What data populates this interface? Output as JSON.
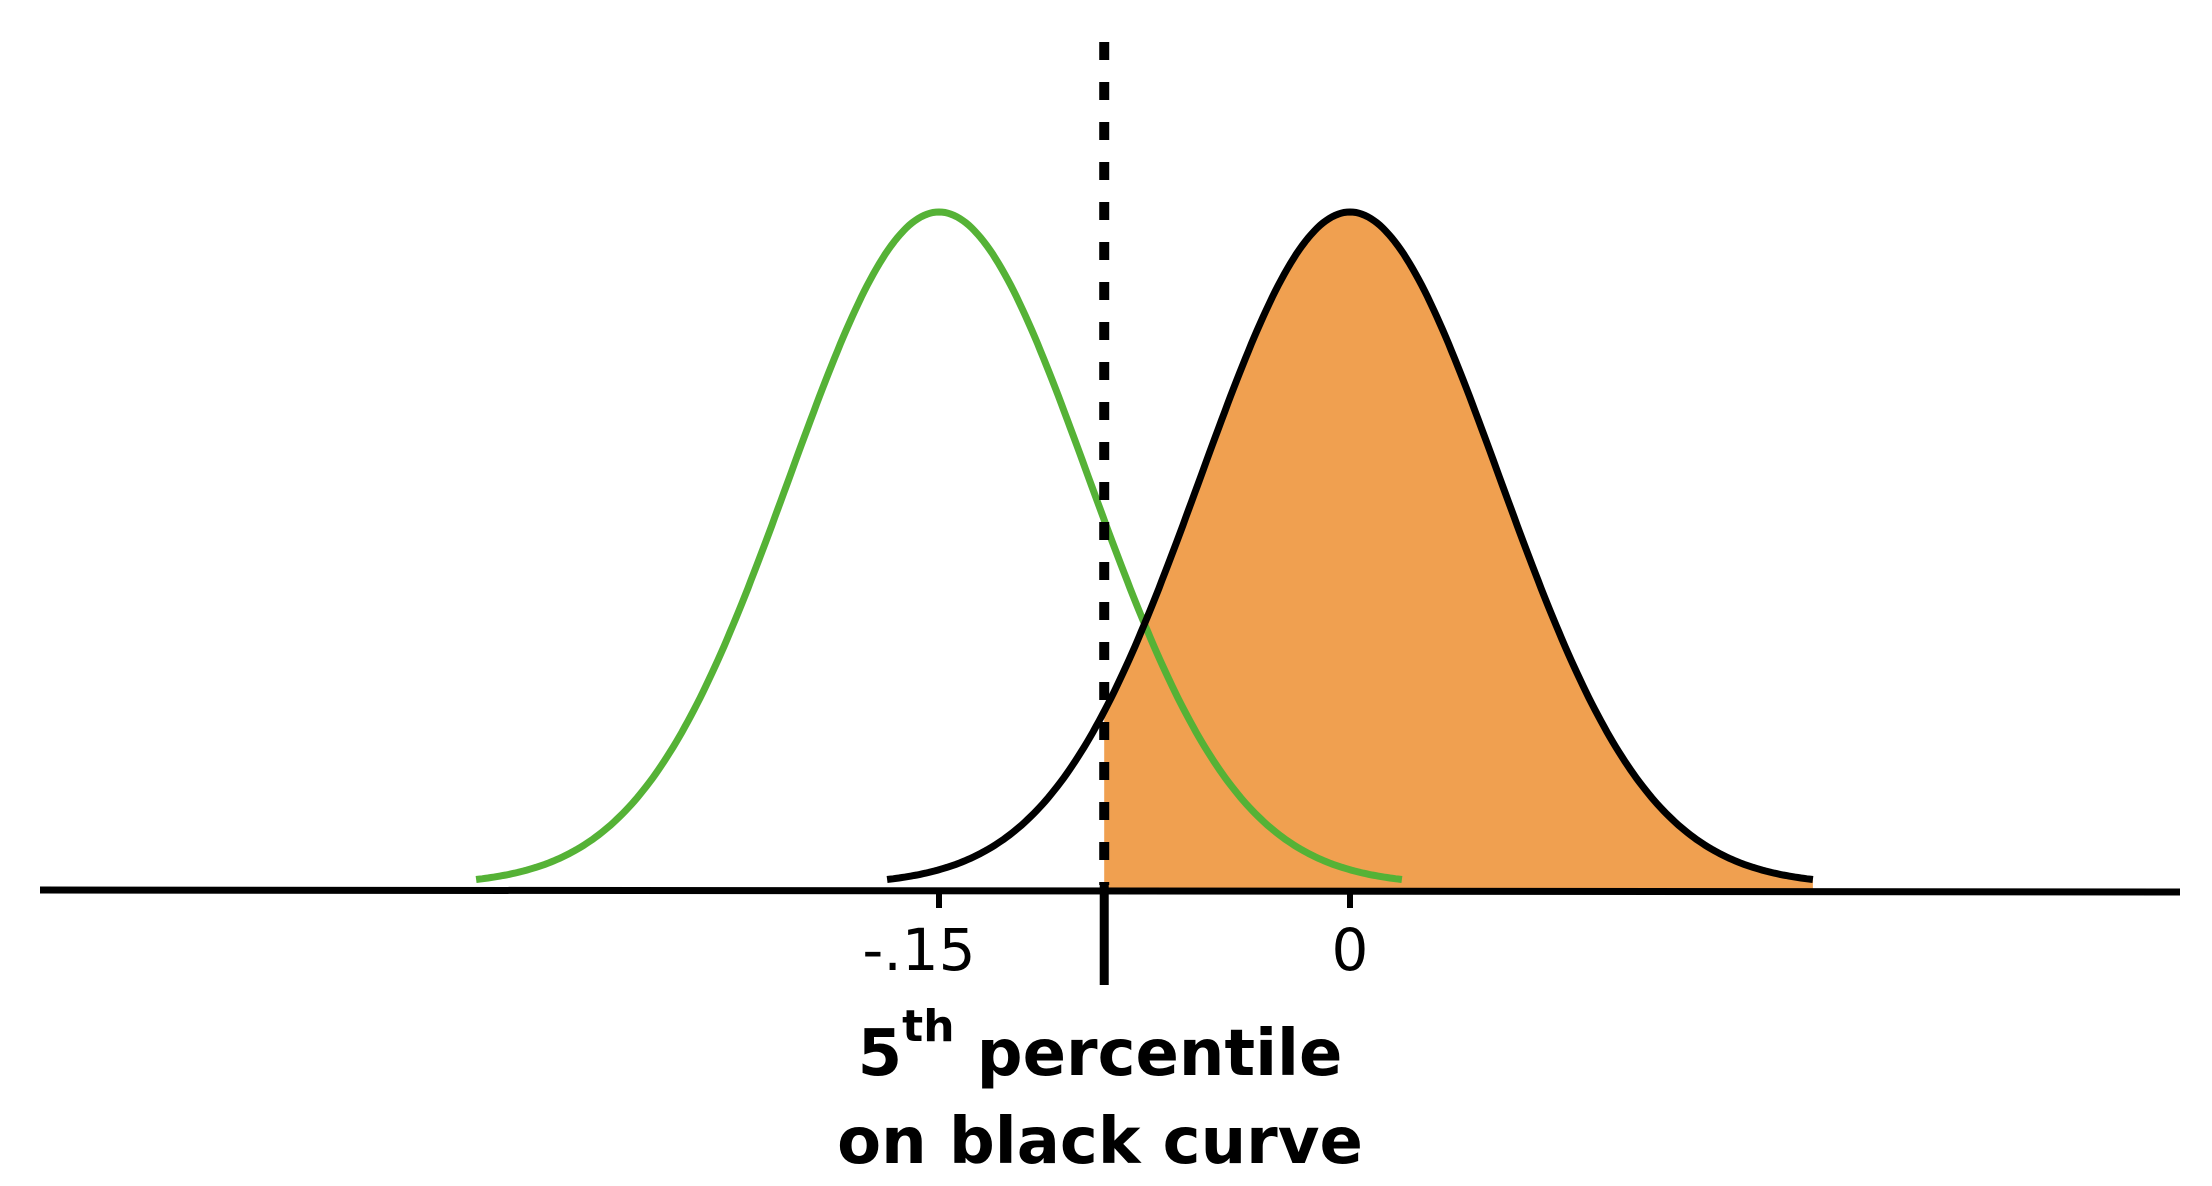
{
  "colors": {
    "background": "#ffffff",
    "green_curve": "#55b236",
    "black_curve": "#000000",
    "shaded_area": "#f0a050",
    "axis": "#000000"
  },
  "curves": [
    {
      "id": "green",
      "mean": -0.15,
      "sd": 0.0545
    },
    {
      "id": "black",
      "mean": 0,
      "sd": 0.0545,
      "shaded_right_of": "cutoff"
    }
  ],
  "cutoff": {
    "value": -0.0897,
    "style": "dotted"
  },
  "axis": {
    "range": [
      -0.3,
      0.2
    ]
  },
  "tick_labels": [
    "-.15",
    "0"
  ],
  "caption": {
    "line1_number": "5",
    "line1_suffix": "th",
    "line1_rest": "percentile",
    "line2": "on black curve"
  }
}
